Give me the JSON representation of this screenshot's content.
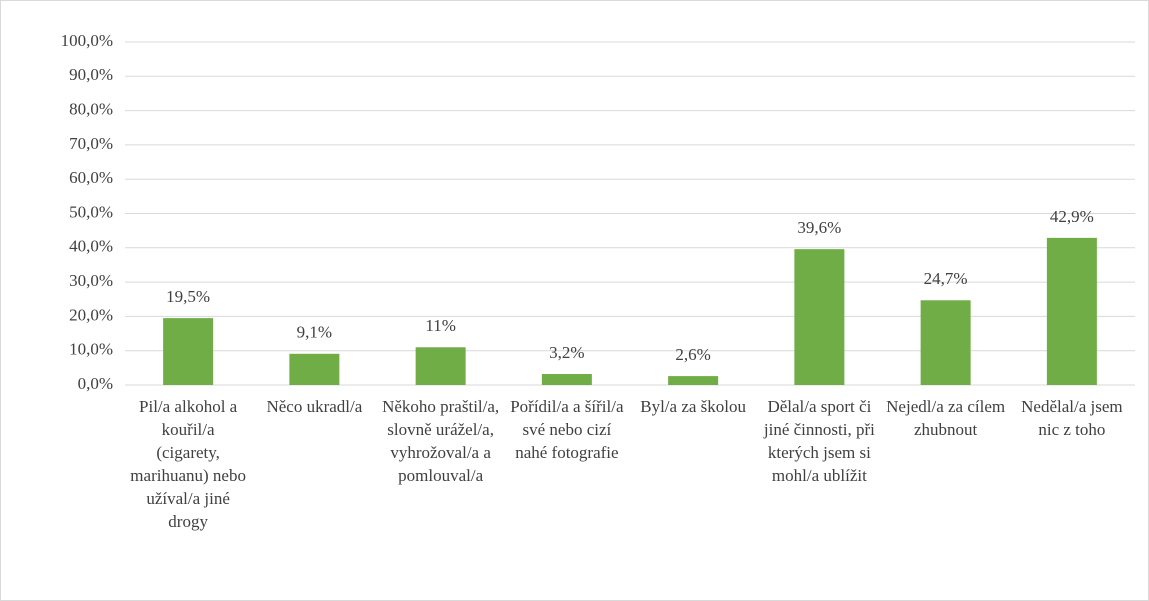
{
  "chart_data": {
    "type": "bar",
    "categories": [
      "Pil/a alkohol a kouřil/a (cigarety, marihuanu) nebo užíval/a jiné drogy",
      "Něco ukradl/a",
      "Někoho praštil/a, slovně urážel/a, vyhrožoval/a a pomlouval/a",
      "Pořídil/a a šířil/a své nebo cizí nahé fotografie",
      "Byl/a za školou",
      "Dělal/a sport či jiné činnosti, při kterých jsem si mohl/a ublížit",
      "Nejedl/a za cílem zhubnout",
      "Nedělal/a jsem nic z toho"
    ],
    "values": [
      19.5,
      9.1,
      11,
      3.2,
      2.6,
      39.6,
      24.7,
      42.9
    ],
    "value_labels": [
      "19,5%",
      "9,1%",
      "11%",
      "3,2%",
      "2,6%",
      "39,6%",
      "24,7%",
      "42,9%"
    ],
    "color": "#70ad47",
    "ylim": [
      0,
      100
    ],
    "yticks": [
      {
        "value": 0,
        "label": "0,0%"
      },
      {
        "value": 10,
        "label": "10,0%"
      },
      {
        "value": 20,
        "label": "20,0%"
      },
      {
        "value": 30,
        "label": "30,0%"
      },
      {
        "value": 40,
        "label": "40,0%"
      },
      {
        "value": 50,
        "label": "50,0%"
      },
      {
        "value": 60,
        "label": "60,0%"
      },
      {
        "value": 70,
        "label": "70,0%"
      },
      {
        "value": 80,
        "label": "80,0%"
      },
      {
        "value": 90,
        "label": "90,0%"
      },
      {
        "value": 100,
        "label": "100,0%"
      }
    ],
    "grid": true
  }
}
